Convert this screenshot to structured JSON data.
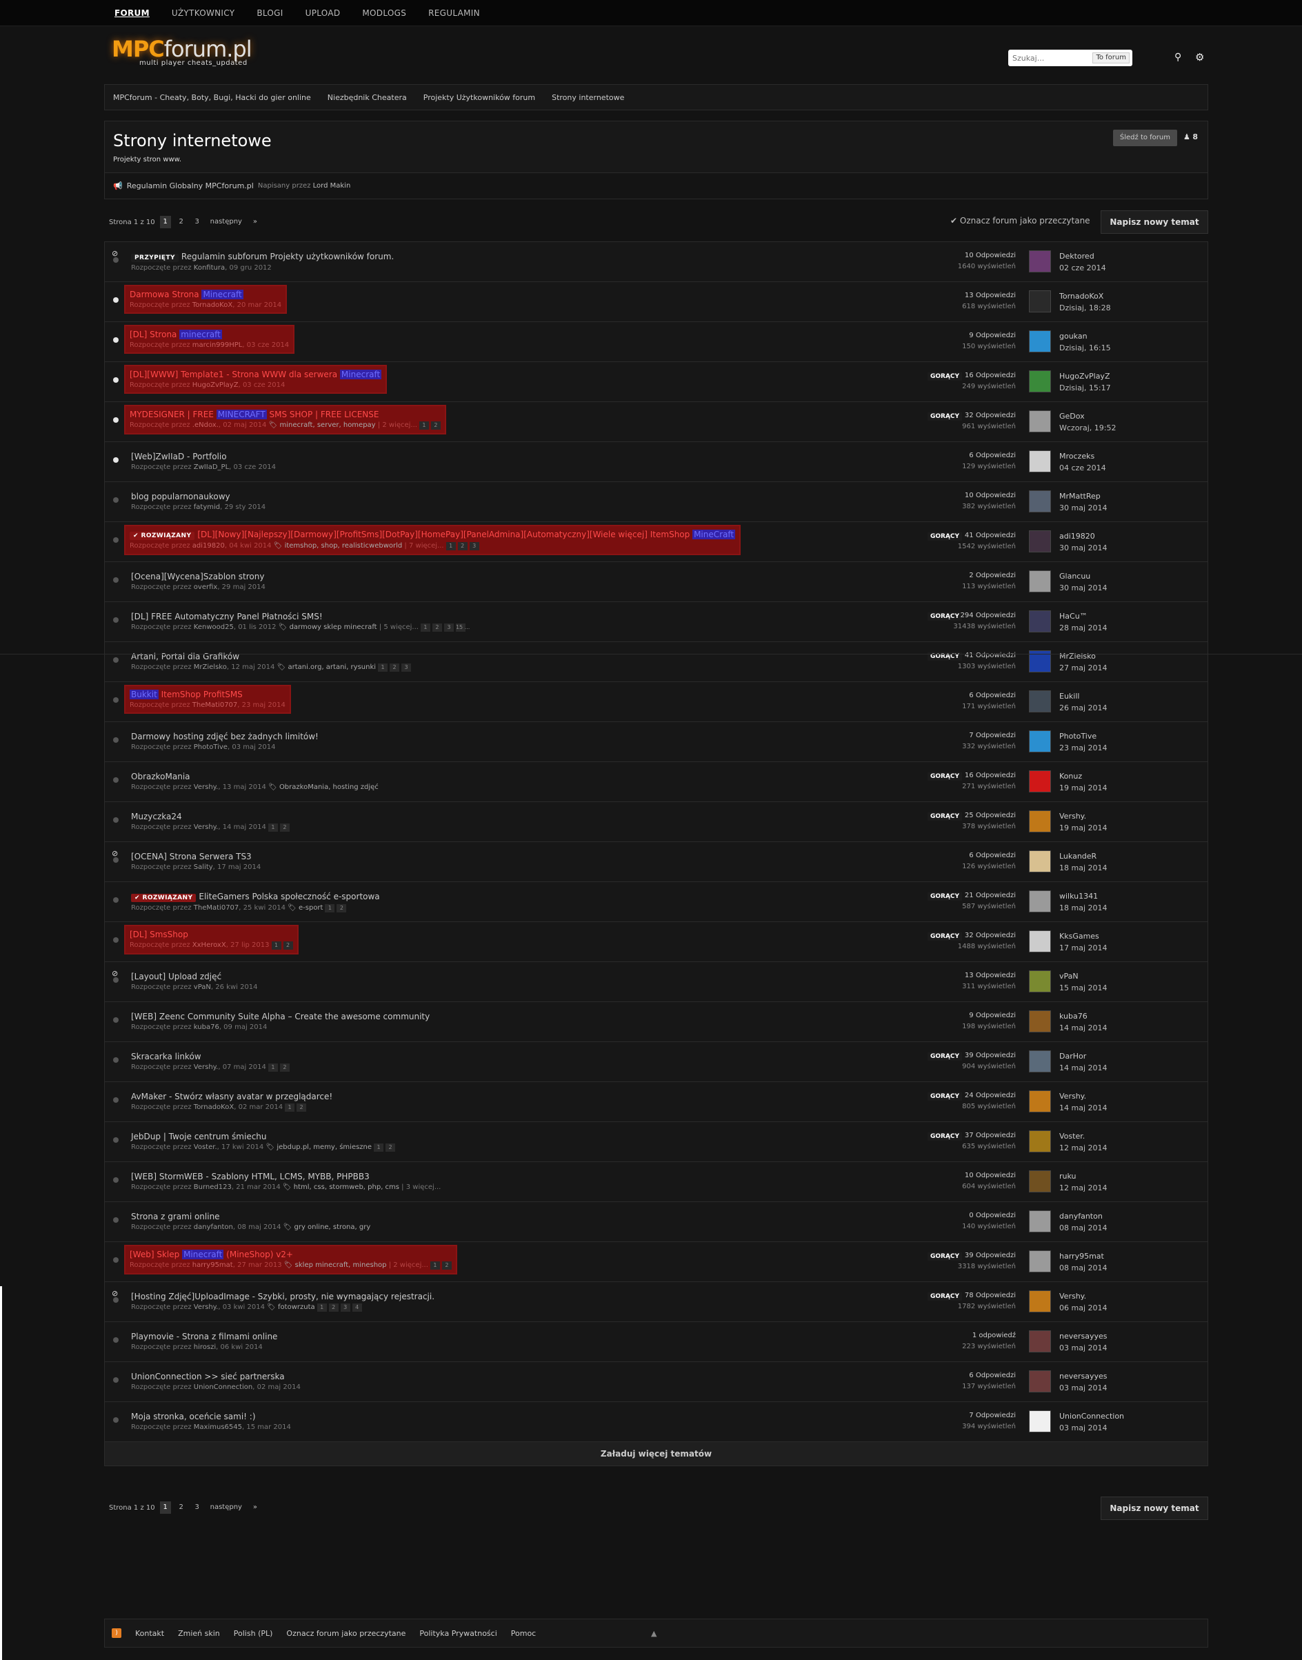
{
  "nav": [
    "FORUM",
    "UŻYTKOWNICY",
    "BLOGI",
    "UPLOAD",
    "MODLOGS",
    "REGULAMIN"
  ],
  "logo": {
    "main": "MPC",
    "rest": "forum.pl",
    "tagline": "multi player cheats_updated"
  },
  "search": {
    "placeholder": "Szukaj...",
    "scope": "To forum"
  },
  "breadcrumb": [
    "MPCforum - Cheaty, Boty, Bugi, Hacki do gier online",
    "Niezbędnik Cheatera",
    "Projekty Użytkowników forum",
    "Strony internetowe"
  ],
  "forum": {
    "title": "Strony internetowe",
    "description": "Projekty stron www.",
    "follow": "Śledź to forum",
    "followers": "8"
  },
  "announcement": {
    "title": "Regulamin Globalny MPCforum.pl",
    "by": "Napisany przez",
    "author": "Lord Makin"
  },
  "pagination": {
    "label": "Strona 1 z 10",
    "pages": [
      "1",
      "2",
      "3"
    ],
    "next": "następny",
    "last": "»"
  },
  "mark_read": "Oznacz forum jako przeczytane",
  "new_topic": "Napisz nowy temat",
  "started_by": "Rozpoczęte przez",
  "hot_label": "GORĄCY",
  "threads": [
    {
      "badge": "PRZYPIĘTY",
      "title": "Regulamin subforum Projekty użytkowników forum.",
      "author": "Konfitura",
      "date": "09 gru 2012",
      "replies": "10 Odpowiedzi",
      "views": "1640 wyświetleń",
      "last_user": "Dektored",
      "last_time": "02 cze 2014",
      "avatar": "#6a3a70",
      "locked": true
    },
    {
      "title": "Darmowa Strona ",
      "mc": "Minecraft",
      "author": "TornadoKoX",
      "date": "20 mar 2014",
      "replies": "13 Odpowiedzi",
      "views": "618 wyświetleń",
      "last_user": "TornadoKoX",
      "last_time": "Dzisiaj, 18:28",
      "avatar": "#2a2a2a",
      "hl": true,
      "new": true
    },
    {
      "title": "[DL] Strona ",
      "mc": "minecraft",
      "author": "marcin999HPL",
      "date": "03 cze 2014",
      "replies": "9 Odpowiedzi",
      "views": "150 wyświetleń",
      "last_user": "goukan",
      "last_time": "Dzisiaj, 16:15",
      "avatar": "#2a8fd0",
      "hl": true,
      "new": true
    },
    {
      "title": "[DL][WWW] Template1 - Strona WWW dla serwera ",
      "mc": "Minecraft",
      "author": "HugoZvPlayZ",
      "date": "03 cze 2014",
      "replies": "16 Odpowiedzi",
      "views": "249 wyświetleń",
      "last_user": "HugoZvPlayZ",
      "last_time": "Dzisiaj, 15:17",
      "avatar": "#3a8a3a",
      "hl": true,
      "new": true,
      "hot": true
    },
    {
      "title": "MYDESIGNER | FREE ",
      "mc": "MINECRAFT",
      "title2": " SMS SHOP | FREE LICENSE",
      "author": ".eNdox.",
      "date": "02 maj 2014",
      "tags": "minecraft, server, homepay",
      "more": "2 więcej...",
      "pages": [
        "1",
        "2"
      ],
      "replies": "32 Odpowiedzi",
      "views": "961 wyświetleń",
      "last_user": "GeDox",
      "last_time": "Wczoraj, 19:52",
      "avatar": "#9a9a9a",
      "hl": true,
      "new": true,
      "hot": true
    },
    {
      "title": "[Web]ZwIIaD - Portfolio",
      "author": "ZwIIaD_PL",
      "date": "03 cze 2014",
      "replies": "6 Odpowiedzi",
      "views": "129 wyświetleń",
      "last_user": "Mroczeks",
      "last_time": "04 cze 2014",
      "avatar": "#cfcfcf",
      "new": true
    },
    {
      "title": "blog popularnonaukowy",
      "author": "fatymid",
      "date": "29 sty 2014",
      "replies": "10 Odpowiedzi",
      "views": "382 wyświetleń",
      "last_user": "MrMattRep",
      "last_time": "30 maj 2014",
      "avatar": "#556070"
    },
    {
      "badge": "ROZWIĄZANY",
      "title": "[DL][Nowy][Najlepszy][Darmowy][ProfitSms][DotPay][HomePay][PanelAdmina][Automatyczny][Wiele więcej] ItemShop ",
      "mc": "MineCraft",
      "author": "adi19820",
      "date": "04 kwi 2014",
      "tags": "itemshop, shop, realisticwebworld",
      "more": "7 więcej...",
      "pages": [
        "1",
        "2",
        "3"
      ],
      "replies": "41 Odpowiedzi",
      "views": "1542 wyświetleń",
      "last_user": "adi19820",
      "last_time": "30 maj 2014",
      "avatar": "#403040",
      "hl": true,
      "hot": true
    },
    {
      "title": "[Ocena][Wycena]Szablon strony",
      "author": "overfix",
      "date": "29 maj 2014",
      "replies": "2 Odpowiedzi",
      "views": "113 wyświetleń",
      "last_user": "Glancuu",
      "last_time": "30 maj 2014",
      "avatar": "#9a9a9a"
    },
    {
      "title": "[DL] FREE Automatyczny Panel Płatności SMS!",
      "author": "Kenwood25",
      "date": "01 lis 2012",
      "tags": "darmowy sklep minecraft",
      "more": "5 więcej...",
      "pages": [
        "1",
        "2",
        "3",
        "15 ..."
      ],
      "replies": "294 Odpowiedzi",
      "views": "31438 wyświetleń",
      "last_user": "HaCu™",
      "last_time": "28 maj 2014",
      "avatar": "#3a3a5a",
      "hot": true
    },
    {
      "title": "Artani, Portal dla Grafików",
      "author": "MrZielsko",
      "date": "12 maj 2014",
      "tags": "artani.org, artani, rysunki",
      "pages": [
        "1",
        "2",
        "3"
      ],
      "replies": "41 Odpowiedzi",
      "views": "1303 wyświetleń",
      "last_user": "MrZielsko",
      "last_time": "27 maj 2014",
      "avatar": "#1c3fa8",
      "hot": true
    },
    {
      "mc": "Bukkit",
      "title2": " ItemShop ProfitSMS",
      "author": "TheMati0707",
      "date": "23 maj 2014",
      "replies": "6 Odpowiedzi",
      "views": "171 wyświetleń",
      "last_user": "Eukill",
      "last_time": "26 maj 2014",
      "avatar": "#404a55",
      "hl": true
    },
    {
      "title": "Darmowy hosting zdjęć bez żadnych limitów!",
      "author": "PhotoTive",
      "date": "03 maj 2014",
      "replies": "7 Odpowiedzi",
      "views": "332 wyświetleń",
      "last_user": "PhotoTive",
      "last_time": "23 maj 2014",
      "avatar": "#2a8fd0"
    },
    {
      "title": "ObrazkoMania",
      "author": "Vershy.",
      "date": "13 maj 2014",
      "tags": "ObrazkoMania, hosting zdjęć",
      "replies": "16 Odpowiedzi",
      "views": "271 wyświetleń",
      "last_user": "Konuz",
      "last_time": "19 maj 2014",
      "avatar": "#d01818",
      "hot": true
    },
    {
      "title": "Muzyczka24",
      "author": "Vershy.",
      "date": "14 maj 2014",
      "pages": [
        "1",
        "2"
      ],
      "replies": "25 Odpowiedzi",
      "views": "378 wyświetleń",
      "last_user": "Vershy.",
      "last_time": "19 maj 2014",
      "avatar": "#c07818",
      "hot": true
    },
    {
      "title": "[OCENA] Strona Serwera TS3",
      "author": "Sality",
      "date": "17 maj 2014",
      "replies": "6 Odpowiedzi",
      "views": "126 wyświetleń",
      "last_user": "LukandeR",
      "last_time": "18 maj 2014",
      "avatar": "#d8c090",
      "locked": true
    },
    {
      "badge": "ROZWIĄZANY",
      "title": "EliteGamers Polska społeczność e-sportowa",
      "author": "TheMati0707",
      "date": "25 kwi 2014",
      "tags": "e-sport",
      "pages": [
        "1",
        "2"
      ],
      "replies": "21 Odpowiedzi",
      "views": "587 wyświetleń",
      "last_user": "wilku1341",
      "last_time": "18 maj 2014",
      "avatar": "#9a9a9a",
      "hot": true
    },
    {
      "title": "[DL] SmsShop",
      "author": "XxHeroxX",
      "date": "27 lip 2013",
      "pages": [
        "1",
        "2"
      ],
      "replies": "32 Odpowiedzi",
      "views": "1488 wyświetleń",
      "last_user": "KksGames",
      "last_time": "17 maj 2014",
      "avatar": "#cccccc",
      "hl": true,
      "hot": true
    },
    {
      "title": "[Layout] Upload zdjęć",
      "author": "vPaN",
      "date": "26 kwi 2014",
      "replies": "13 Odpowiedzi",
      "views": "311 wyświetleń",
      "last_user": "vPaN",
      "last_time": "15 maj 2014",
      "avatar": "#7a8a30",
      "locked": true
    },
    {
      "title": "[WEB] Zeenc Community Suite Alpha – Create the awesome community",
      "author": "kuba76",
      "date": "09 maj 2014",
      "replies": "9 Odpowiedzi",
      "views": "198 wyświetleń",
      "last_user": "kuba76",
      "last_time": "14 maj 2014",
      "avatar": "#8a5a20"
    },
    {
      "title": "Skracarka linków",
      "author": "Vershy.",
      "date": "07 maj 2014",
      "pages": [
        "1",
        "2"
      ],
      "replies": "39 Odpowiedzi",
      "views": "904 wyświetleń",
      "last_user": "DarHor",
      "last_time": "14 maj 2014",
      "avatar": "#5a6a7a",
      "hot": true
    },
    {
      "title": "AvMaker - Stwórz własny avatar w przeglądarce!",
      "author": "TornadoKoX",
      "date": "02 mar 2014",
      "pages": [
        "1",
        "2"
      ],
      "replies": "24 Odpowiedzi",
      "views": "805 wyświetleń",
      "last_user": "Vershy.",
      "last_time": "14 maj 2014",
      "avatar": "#c07818",
      "hot": true
    },
    {
      "title": "JebDup | Twoje centrum śmiechu",
      "author": "Voster.",
      "date": "17 kwi 2014",
      "tags": "jebdup.pl, memy, śmieszne",
      "pages": [
        "1",
        "2"
      ],
      "replies": "37 Odpowiedzi",
      "views": "635 wyświetleń",
      "last_user": "Voster.",
      "last_time": "12 maj 2014",
      "avatar": "#a07818",
      "hot": true
    },
    {
      "title": "[WEB] StormWEB - Szablony HTML, LCMS, MYBB, PHPBB3",
      "author": "Burned123",
      "date": "21 mar 2014",
      "tags": "html, css, stormweb, php, cms",
      "more": "3 więcej...",
      "replies": "10 Odpowiedzi",
      "views": "604 wyświetleń",
      "last_user": "ruku",
      "last_time": "12 maj 2014",
      "avatar": "#705020"
    },
    {
      "title": "Strona z grami online",
      "author": "danyfanton",
      "date": "08 maj 2014",
      "tags": "gry online, strona, gry",
      "replies": "0 Odpowiedzi",
      "views": "140 wyświetleń",
      "last_user": "danyfanton",
      "last_time": "08 maj 2014",
      "avatar": "#9a9a9a"
    },
    {
      "title": "[Web] Sklep ",
      "mc": "Minecraft",
      "title2": " (MineShop) v2+",
      "author": "harry95mat",
      "date": "27 mar 2013",
      "tags": "sklep minecraft, mineshop",
      "more": "2 więcej...",
      "pages": [
        "1",
        "2"
      ],
      "replies": "39 Odpowiedzi",
      "views": "3318 wyświetleń",
      "last_user": "harry95mat",
      "last_time": "08 maj 2014",
      "avatar": "#9a9a9a",
      "hl": true,
      "hot": true
    },
    {
      "title": "[Hosting Zdjęć]UploadImage - Szybki, prosty, nie wymagający rejestracji.",
      "author": "Vershy.",
      "date": "03 kwi 2014",
      "tags": "fotowrzuta",
      "pages": [
        "1",
        "2",
        "3",
        "4"
      ],
      "replies": "78 Odpowiedzi",
      "views": "1782 wyświetleń",
      "last_user": "Vershy.",
      "last_time": "06 maj 2014",
      "avatar": "#c07818",
      "hot": true,
      "locked": true
    },
    {
      "title": "Playmovie - Strona z filmami online",
      "author": "hiroszi",
      "date": "06 kwi 2014",
      "replies": "1 odpowiedź",
      "views": "223 wyświetleń",
      "last_user": "neversayyes",
      "last_time": "03 maj 2014",
      "avatar": "#6a3a3a"
    },
    {
      "title": "UnionConnection >> sieć partnerska",
      "author": "UnionConnection",
      "date": "02 maj 2014",
      "replies": "6 Odpowiedzi",
      "views": "137 wyświetleń",
      "last_user": "neversayyes",
      "last_time": "03 maj 2014",
      "avatar": "#6a3a3a"
    },
    {
      "title": "Moja stronka, oceńcie sami! :)",
      "author": "Maximus6545",
      "date": "15 mar 2014",
      "replies": "7 Odpowiedzi",
      "views": "394 wyświetleń",
      "last_user": "UnionConnection",
      "last_time": "03 maj 2014",
      "avatar": "#f0f0f0"
    }
  ],
  "load_more": "Załaduj więcej tematów",
  "footer": [
    "Kontakt",
    "Zmień skin",
    "Polish (PL)",
    "Oznacz forum jako przeczytane",
    "Polityka Prywatności",
    "Pomoc"
  ]
}
